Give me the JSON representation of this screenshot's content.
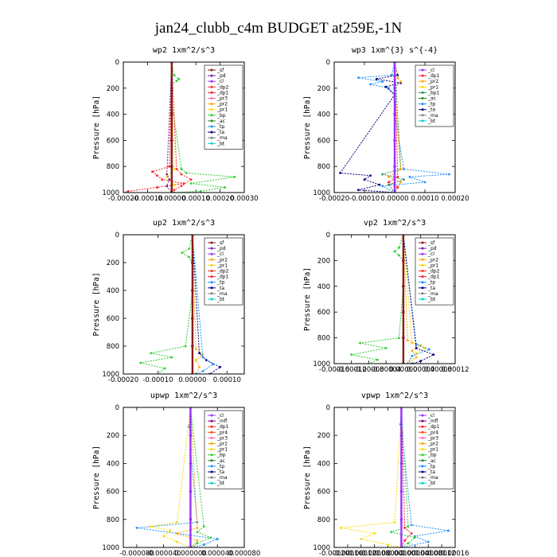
{
  "figure_title": "jan24_clubb_c4m  BUDGET at259E,-1N",
  "colors": {
    "sf": "#8b1a1a",
    "pd": "#7a1fa2",
    "cl": "#9b30ff",
    "dp2": "#ff3030",
    "dp1": "#ff2020",
    "pr3": "#ff69b4",
    "pr2": "#ffa500",
    "pr1": "#ffd700",
    "bp": "#32cd32",
    "ac": "#228b22",
    "tp": "#1e90ff",
    "ta": "#000080",
    "ma": "#808080",
    "bt": "#00ced1",
    "mfl": "#800080",
    "bp1": "#2e8b57",
    "dp4": "#dc143c",
    "pr4": "#ff4500"
  },
  "chart_data": [
    {
      "type": "line",
      "title": "wp2  1xm^2/s^3",
      "ylabel": "Pressure [hPa]",
      "ylim": [
        1000,
        0
      ],
      "xlim": [
        -0.0002,
        0.0003
      ],
      "xticks": [
        -0.0002,
        -0.0001,
        0.0,
        0.0001,
        0.0002,
        0.0003
      ],
      "xtick_labels": [
        "-0.00020",
        "-0.00010",
        "0.00000",
        "0.00010",
        "0.00020",
        "0.00030"
      ],
      "yticks": [
        0,
        200,
        400,
        600,
        800,
        1000
      ],
      "ytick_labels": [
        "0",
        "200",
        "400",
        "600",
        "800",
        "1000"
      ],
      "legend": [
        "_sf",
        "_pd",
        "_cl",
        "_dp2",
        "_dp1",
        "_pr3",
        "_pr2",
        "_pr1",
        "_bp",
        "_ac",
        "_tp",
        "_ta",
        "_ma",
        "_bt"
      ],
      "legend_position": "upper-right",
      "series": [
        {
          "key": "bp",
          "y": [
            0,
            100,
            130,
            145,
            170,
            300,
            820,
            850,
            880,
            930,
            960,
            990,
            1000
          ],
          "x": [
            0,
            1e-05,
            3e-05,
            2e-05,
            0,
            0,
            4e-05,
            6e-05,
            0.00026,
            8e-05,
            0.00022,
            0.00012,
            1e-05
          ]
        },
        {
          "key": "dp1",
          "y": [
            0,
            800,
            840,
            870,
            900,
            930,
            960,
            990,
            1000
          ],
          "x": [
            0,
            -1e-05,
            -8e-05,
            -6e-05,
            -4e-05,
            5e-05,
            -6e-05,
            -0.00018,
            -0.0002
          ]
        },
        {
          "key": "dp2",
          "y": [
            0,
            820,
            860,
            900,
            950,
            980,
            1000
          ],
          "x": [
            0,
            2e-05,
            4e-05,
            8e-05,
            4e-05,
            1e-05,
            0
          ]
        },
        {
          "key": "pr1",
          "y": [
            0,
            820,
            880,
            940,
            1000
          ],
          "x": [
            0,
            1e-05,
            -2e-05,
            1e-05,
            0
          ]
        },
        {
          "key": "pd",
          "y": [
            0,
            860,
            900,
            950,
            1000
          ],
          "x": [
            0,
            -2e-05,
            -1e-05,
            -2e-05,
            0
          ]
        },
        {
          "key": "sf",
          "y": [
            0,
            200,
            400,
            600,
            800,
            1000
          ],
          "x": [
            0,
            0,
            0,
            0,
            0,
            0
          ]
        }
      ]
    },
    {
      "type": "line",
      "title": "wp3  1xm^{3} s^{-4}",
      "ylabel": "Pressure [hPa]",
      "ylim": [
        1000,
        0
      ],
      "xlim": [
        -0.0002,
        0.0002
      ],
      "xticks": [
        -0.0002,
        -0.0001,
        0.0,
        0.0001,
        0.0002
      ],
      "xtick_labels": [
        "-0.00020",
        "-0.00010",
        "0.00000",
        "0.00010",
        "0.00020"
      ],
      "yticks": [
        0,
        200,
        400,
        600,
        800,
        1000
      ],
      "ytick_labels": [
        "0",
        "200",
        "400",
        "600",
        "800",
        "1000"
      ],
      "legend": [
        "_cl",
        "_dp1",
        "_pr2",
        "_pr1",
        "_bp1",
        "_ac",
        "_tp",
        "_ta",
        "_ma",
        "_bt"
      ],
      "legend_position": "upper-right",
      "series": [
        {
          "key": "tp",
          "y": [
            0,
            100,
            120,
            150,
            170,
            200,
            250,
            400,
            820,
            860,
            880,
            920,
            950,
            1000
          ],
          "x": [
            0,
            -1e-05,
            -0.00012,
            -4e-05,
            -8e-05,
            -2e-05,
            0,
            0,
            3e-05,
            0.00018,
            5e-05,
            0.0001,
            -4e-05,
            0
          ]
        },
        {
          "key": "ta",
          "y": [
            0,
            100,
            130,
            160,
            190,
            250,
            850,
            870,
            900,
            940,
            980,
            1000
          ],
          "x": [
            0,
            1e-05,
            -6e-05,
            2e-05,
            -3e-05,
            0,
            -0.00018,
            -8e-05,
            -0.0001,
            -5e-05,
            -0.00012,
            0
          ]
        },
        {
          "key": "bp1",
          "y": [
            0,
            820,
            860,
            900,
            940,
            1000
          ],
          "x": [
            0,
            2e-05,
            -4e-05,
            3e-05,
            -2e-05,
            0
          ]
        },
        {
          "key": "pr2",
          "y": [
            0,
            120,
            150,
            200,
            820,
            880,
            920,
            1000
          ],
          "x": [
            0,
            1e-05,
            2e-05,
            0,
            2e-05,
            -2e-05,
            2e-05,
            0
          ]
        },
        {
          "key": "dp1",
          "y": [
            0,
            880,
            920,
            960,
            1000
          ],
          "x": [
            0,
            1e-05,
            -2e-05,
            1e-05,
            0
          ]
        },
        {
          "key": "cl",
          "y": [
            0,
            200,
            400,
            600,
            800,
            1000
          ],
          "x": [
            0,
            0,
            0,
            0,
            0,
            0
          ]
        }
      ]
    },
    {
      "type": "line",
      "title": "up2  1xm^2/s^3",
      "ylabel": "Pressure [hPa]",
      "ylim": [
        1000,
        0
      ],
      "xlim": [
        -0.0002,
        0.00015
      ],
      "xticks": [
        -0.0002,
        -0.0001,
        0.0,
        0.0001
      ],
      "xtick_labels": [
        "-0.00020",
        "-0.00010",
        "0.00000",
        "0.00010"
      ],
      "yticks": [
        0,
        200,
        400,
        600,
        800,
        1000
      ],
      "ytick_labels": [
        "0",
        "200",
        "400",
        "600",
        "800",
        "1000"
      ],
      "legend": [
        "_sf",
        "_pd",
        "_cl",
        "_pr2",
        "_pr1",
        "_dp2",
        "_dp1",
        "_tp",
        "_ta",
        "_ma",
        "_bt"
      ],
      "legend_position": "upper-right",
      "series": [
        {
          "key": "bp",
          "y": [
            0,
            100,
            130,
            160,
            200,
            400,
            800,
            850,
            880,
            920,
            960,
            1000
          ],
          "x": [
            0,
            -1e-05,
            -3e-05,
            -1e-05,
            0,
            0,
            -2e-05,
            -0.00012,
            -6e-05,
            -0.00015,
            -8e-05,
            -0.0001
          ]
        },
        {
          "key": "pr2",
          "y": [
            0,
            820,
            860,
            900,
            950,
            1000
          ],
          "x": [
            0,
            1e-05,
            3e-05,
            1e-05,
            2e-05,
            1e-05
          ]
        },
        {
          "key": "ta",
          "y": [
            0,
            850,
            900,
            950,
            1000
          ],
          "x": [
            0,
            2e-05,
            4e-05,
            8e-05,
            5e-05
          ]
        },
        {
          "key": "tp",
          "y": [
            0,
            880,
            930,
            980,
            1000
          ],
          "x": [
            0,
            3e-05,
            6e-05,
            3e-05,
            1e-05
          ]
        },
        {
          "key": "sf",
          "y": [
            0,
            200,
            400,
            600,
            800,
            1000
          ],
          "x": [
            0,
            0,
            0,
            0,
            0,
            0
          ]
        }
      ]
    },
    {
      "type": "line",
      "title": "vp2  1xm^2/s^3",
      "ylabel": "Pressure [hPa]",
      "ylim": [
        1000,
        0
      ],
      "xlim": [
        -0.00016,
        0.00012
      ],
      "xticks": [
        -0.00016,
        -0.00012,
        -8e-05,
        -4e-05,
        0.0,
        4e-05,
        8e-05,
        0.00012
      ],
      "xtick_labels": [
        "-0.00016",
        "-0.00012",
        "-0.00008",
        "-0.00004",
        "0.00000",
        "0.00004",
        "0.00008",
        "0.00012"
      ],
      "yticks": [
        0,
        200,
        400,
        600,
        800,
        1000
      ],
      "ytick_labels": [
        "0",
        "200",
        "400",
        "600",
        "800",
        "1000"
      ],
      "legend": [
        "_sf",
        "_pd",
        "_cl",
        "_pr2",
        "_pr1",
        "_dp2",
        "_dp1",
        "_tp",
        "_ta",
        "_ma",
        "_bt"
      ],
      "legend_position": "upper-right",
      "series": [
        {
          "key": "bp",
          "y": [
            0,
            100,
            130,
            160,
            200,
            400,
            800,
            840,
            880,
            930,
            970,
            1000
          ],
          "x": [
            0,
            -1e-05,
            -2e-05,
            -1e-05,
            0,
            0,
            -1e-05,
            -0.0001,
            -4e-05,
            -0.00012,
            -6e-05,
            -8e-05
          ]
        },
        {
          "key": "pr2",
          "y": [
            0,
            820,
            860,
            900,
            950,
            1000
          ],
          "x": [
            0,
            1e-05,
            4e-05,
            2e-05,
            3e-05,
            1e-05
          ]
        },
        {
          "key": "pr1",
          "y": [
            0,
            840,
            880,
            920,
            1000
          ],
          "x": [
            0,
            2e-05,
            5e-05,
            3e-05,
            1e-05
          ]
        },
        {
          "key": "tp",
          "y": [
            0,
            850,
            890,
            940,
            1000
          ],
          "x": [
            0,
            3e-05,
            6e-05,
            2e-05,
            1e-05
          ]
        },
        {
          "key": "ta",
          "y": [
            0,
            880,
            930,
            980,
            1000
          ],
          "x": [
            0,
            3e-05,
            7e-05,
            4e-05,
            2e-05
          ]
        },
        {
          "key": "sf",
          "y": [
            0,
            200,
            400,
            600,
            800,
            1000
          ],
          "x": [
            0,
            0,
            0,
            0,
            0,
            0
          ]
        }
      ]
    },
    {
      "type": "line",
      "title": "upwp  1xm^2/s^3",
      "ylabel": "Pressure [hPa]",
      "ylim": [
        1000,
        0
      ],
      "xlim": [
        -0.0001,
        8e-05
      ],
      "xticks": [
        -8e-05,
        -4e-05,
        0.0,
        4e-05,
        8e-05
      ],
      "xtick_labels": [
        "-0.000080",
        "-0.000040",
        "0.000000",
        "0.000040",
        "0.000080"
      ],
      "yticks": [
        0,
        200,
        400,
        600,
        800,
        1000
      ],
      "ytick_labels": [
        "0",
        "200",
        "400",
        "600",
        "800",
        "1000"
      ],
      "legend": [
        "_cl",
        "_mfl",
        "_dp1",
        "_pr4",
        "_pr3",
        "_pr2",
        "_pr1",
        "_bp",
        "_ac",
        "_tp",
        "_ta",
        "_ma",
        "_bt"
      ],
      "legend_position": "upper-right",
      "series": [
        {
          "key": "tp",
          "y": [
            0,
            100,
            140,
            180,
            300,
            820,
            860,
            900,
            940,
            980,
            1000
          ],
          "x": [
            0,
            0,
            -3e-06,
            0,
            0,
            1e-05,
            -8e-05,
            -2e-05,
            4e-05,
            2e-05,
            0
          ]
        },
        {
          "key": "pr1",
          "y": [
            0,
            820,
            850,
            880,
            920,
            960,
            1000
          ],
          "x": [
            0,
            -2e-05,
            -6e-05,
            -3e-05,
            -4e-05,
            -2e-05,
            0
          ]
        },
        {
          "key": "bp",
          "y": [
            0,
            850,
            890,
            930,
            970,
            1000
          ],
          "x": [
            0,
            2e-05,
            1e-05,
            3e-05,
            1e-05,
            0
          ]
        },
        {
          "key": "pr2",
          "y": [
            0,
            860,
            900,
            950,
            1000
          ],
          "x": [
            0,
            1e-05,
            -2e-05,
            1e-05,
            0
          ]
        },
        {
          "key": "cl",
          "y": [
            0,
            200,
            400,
            600,
            800,
            1000
          ],
          "x": [
            0,
            0,
            0,
            0,
            0,
            0
          ]
        }
      ]
    },
    {
      "type": "line",
      "title": "vpwp  1xm^2/s^3",
      "ylabel": "Pressure [hPa]",
      "ylim": [
        1000,
        0
      ],
      "xlim": [
        -0.0002,
        0.00016
      ],
      "xticks": [
        -0.0002,
        -0.00016,
        -0.00012,
        -8e-05,
        -4e-05,
        0.0,
        4e-05,
        8e-05,
        0.00012,
        0.00016
      ],
      "xtick_labels": [
        "-0.00020",
        "-0.00016",
        "-0.00012",
        "-0.00008",
        "-0.00004",
        "0.00000",
        "0.00004",
        "0.00008",
        "0.00012",
        "0.00016"
      ],
      "yticks": [
        0,
        200,
        400,
        600,
        800,
        1000
      ],
      "ytick_labels": [
        "0",
        "200",
        "400",
        "600",
        "800",
        "1000"
      ],
      "legend": [
        "_cl",
        "_mfl",
        "_dp1",
        "_pr4",
        "_pr3",
        "_pr2",
        "_pr1",
        "_bp",
        "_ac",
        "_tp",
        "_ta",
        "_ma",
        "_bt"
      ],
      "legend_position": "upper-right",
      "series": [
        {
          "key": "pr1",
          "y": [
            0,
            820,
            860,
            900,
            940,
            980,
            1000
          ],
          "x": [
            0,
            -2e-05,
            -0.00018,
            -8e-05,
            -0.00012,
            -4e-05,
            0
          ]
        },
        {
          "key": "tp",
          "y": [
            0,
            120,
            150,
            180,
            840,
            880,
            920,
            960,
            1000
          ],
          "x": [
            0,
            -3e-06,
            0,
            2e-06,
            3e-05,
            0.00014,
            4e-05,
            8e-05,
            0
          ]
        },
        {
          "key": "bp",
          "y": [
            0,
            850,
            890,
            930,
            970,
            1000
          ],
          "x": [
            0,
            2e-05,
            -3e-05,
            4e-05,
            2e-05,
            0
          ]
        },
        {
          "key": "dp1",
          "y": [
            0,
            860,
            900,
            950,
            1000
          ],
          "x": [
            0,
            1e-05,
            3e-05,
            1e-05,
            0
          ]
        },
        {
          "key": "cl",
          "y": [
            0,
            200,
            400,
            600,
            800,
            1000
          ],
          "x": [
            0,
            0,
            0,
            0,
            0,
            0
          ]
        }
      ]
    }
  ]
}
